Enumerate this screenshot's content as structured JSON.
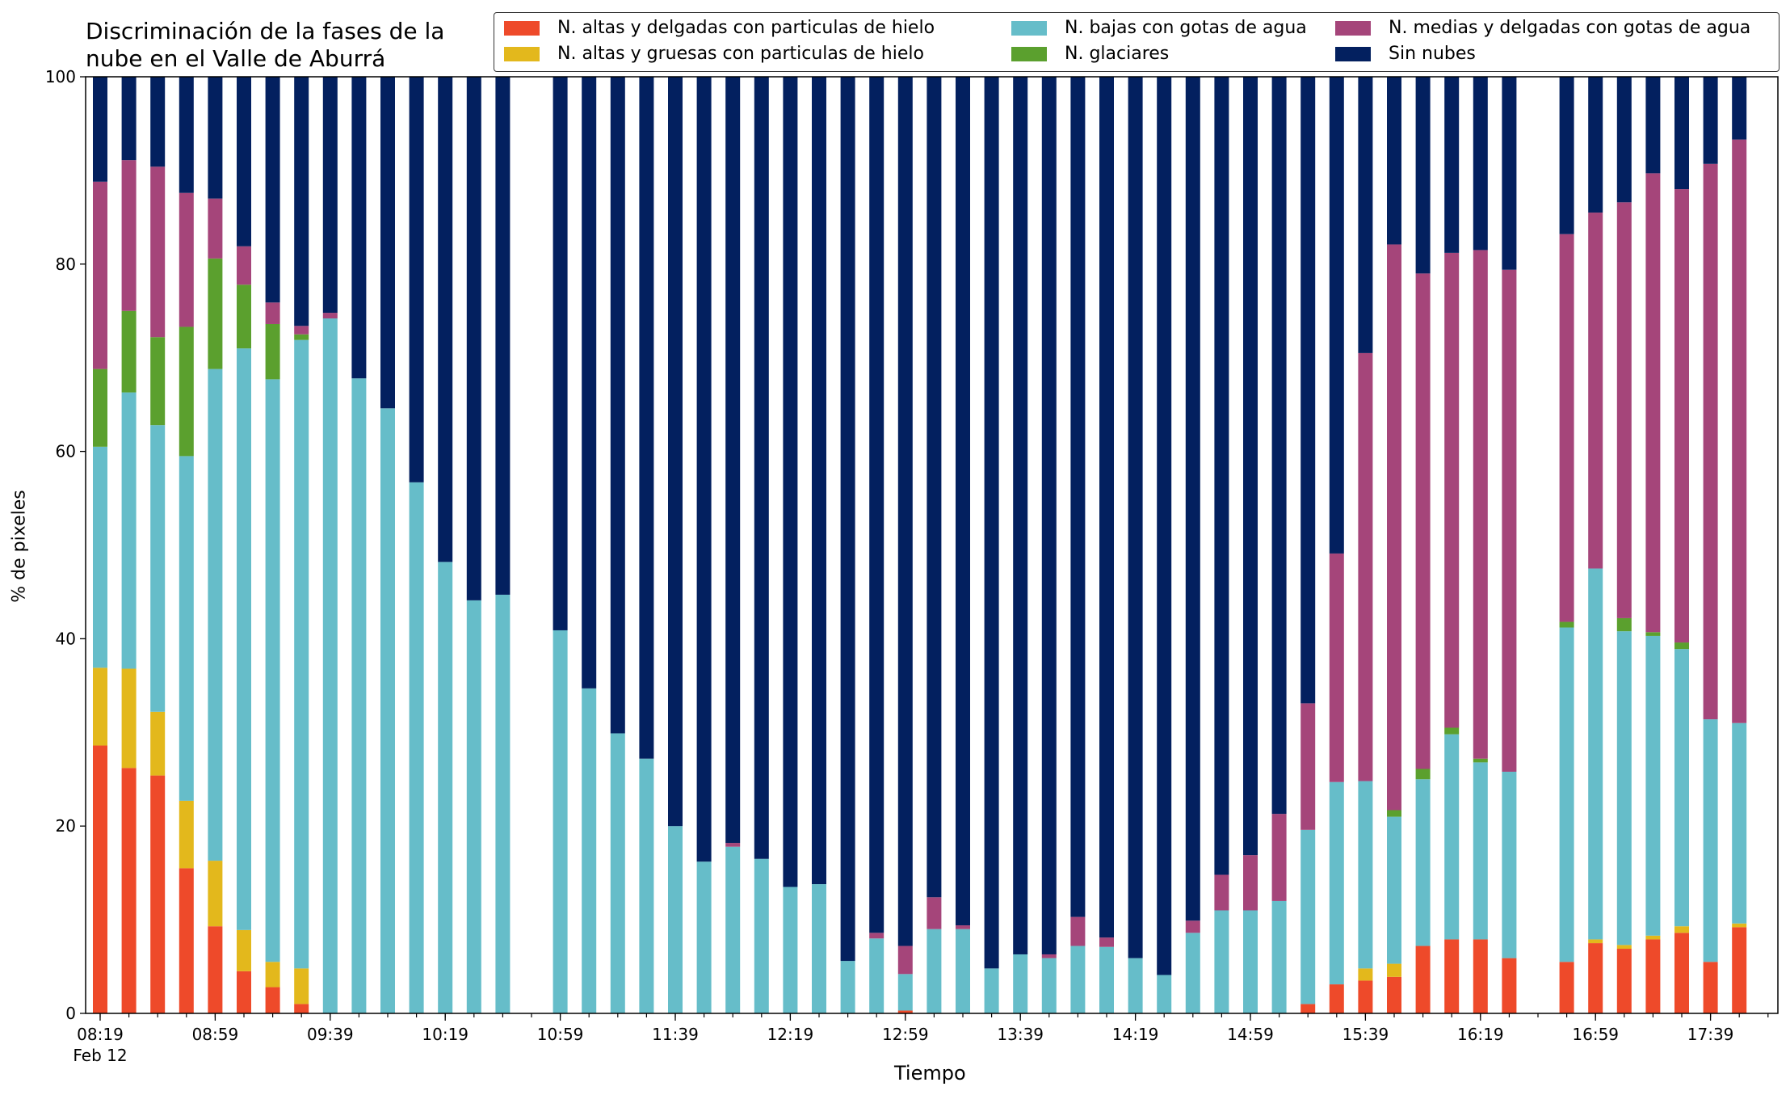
{
  "chart_data": {
    "type": "bar",
    "stacked": true,
    "title": "Discriminación de la fases de la nube en el Valle de Aburrá",
    "xlabel": "Tiempo",
    "ylabel": "% de pixeles",
    "ylim": [
      0,
      100
    ],
    "yticks": [
      "0",
      "20",
      "40",
      "60",
      "80",
      "100"
    ],
    "xticks": [
      "08:19",
      "08:59",
      "09:39",
      "10:19",
      "10:59",
      "11:39",
      "12:19",
      "12:59",
      "13:39",
      "14:19",
      "14:59",
      "15:39",
      "16:19",
      "16:59",
      "17:39"
    ],
    "xtick_sublabel": "Feb 12",
    "legend_position": "top",
    "x": [
      "08:19",
      "08:29",
      "08:39",
      "08:49",
      "08:59",
      "09:09",
      "09:19",
      "09:29",
      "09:39",
      "09:49",
      "09:59",
      "10:09",
      "10:19",
      "10:29",
      "10:39",
      "10:49",
      "10:59",
      "11:09",
      "11:19",
      "11:29",
      "11:39",
      "11:49",
      "11:59",
      "12:09",
      "12:19",
      "12:29",
      "12:39",
      "12:49",
      "12:59",
      "13:09",
      "13:19",
      "13:29",
      "13:39",
      "13:49",
      "13:59",
      "14:09",
      "14:19",
      "14:29",
      "14:39",
      "14:49",
      "14:59",
      "15:09",
      "15:19",
      "15:29",
      "15:39",
      "15:49",
      "15:59",
      "16:09",
      "16:19",
      "16:29",
      "16:39",
      "16:49",
      "16:59",
      "17:09",
      "17:19",
      "17:29",
      "17:39",
      "17:49"
    ],
    "series": [
      {
        "name": "N. altas y delgadas con particulas de hielo",
        "color": "#ee4a2a",
        "values": [
          28.6,
          26.2,
          25.4,
          15.5,
          9.3,
          4.5,
          2.8,
          1.0,
          0,
          0,
          0,
          0,
          0,
          0,
          0,
          null,
          0,
          0,
          0,
          0,
          0,
          0,
          0,
          0,
          0,
          0,
          0,
          0,
          0.3,
          0,
          0,
          0,
          0,
          0,
          0,
          0,
          0,
          0,
          0,
          0,
          0,
          0,
          1.0,
          3.1,
          3.5,
          3.9,
          7.2,
          7.9,
          7.9,
          5.9,
          null,
          5.5,
          7.5,
          6.9,
          7.9,
          8.6,
          5.5,
          9.2
        ]
      },
      {
        "name": "N. altas y gruesas con particulas de hielo",
        "color": "#e3b81c",
        "values": [
          8.3,
          10.6,
          6.8,
          7.2,
          7.0,
          4.4,
          2.7,
          3.8,
          0,
          0,
          0,
          0,
          0,
          0,
          0,
          null,
          0,
          0,
          0,
          0,
          0,
          0,
          0,
          0,
          0,
          0,
          0,
          0,
          0,
          0,
          0,
          0,
          0,
          0,
          0,
          0,
          0,
          0,
          0,
          0,
          0,
          0,
          0,
          0,
          1.3,
          1.4,
          0,
          0,
          0,
          0,
          null,
          0,
          0.4,
          0.4,
          0.4,
          0.7,
          0,
          0.4
        ]
      },
      {
        "name": "N. bajas con gotas de agua",
        "color": "#66bdc9",
        "values": [
          23.6,
          29.5,
          30.6,
          36.8,
          52.5,
          62.1,
          62.2,
          67.1,
          74.2,
          67.8,
          64.6,
          56.7,
          48.2,
          44.1,
          44.7,
          null,
          40.9,
          34.7,
          29.9,
          27.2,
          20.0,
          16.2,
          17.8,
          16.5,
          13.5,
          13.8,
          5.6,
          8.0,
          3.9,
          9.0,
          9.0,
          4.8,
          6.3,
          5.9,
          7.2,
          7.1,
          5.9,
          4.1,
          8.6,
          11.0,
          11.0,
          12.0,
          18.6,
          21.6,
          20.0,
          15.7,
          17.8,
          21.9,
          18.9,
          19.9,
          null,
          35.7,
          39.6,
          33.5,
          32.0,
          29.6,
          25.9,
          21.4
        ]
      },
      {
        "name": "N. glaciares",
        "color": "#5ba02e",
        "values": [
          8.3,
          8.7,
          9.4,
          13.8,
          11.8,
          6.8,
          5.9,
          0.6,
          0,
          0,
          0,
          0,
          0,
          0,
          0,
          null,
          0,
          0,
          0,
          0,
          0,
          0,
          0,
          0,
          0,
          0,
          0,
          0,
          0,
          0,
          0,
          0,
          0,
          0,
          0,
          0,
          0,
          0,
          0,
          0,
          0,
          0,
          0,
          0,
          0,
          0.7,
          1.1,
          0.7,
          0.4,
          0,
          null,
          0.6,
          0,
          1.4,
          0.4,
          0.7,
          0,
          0
        ]
      },
      {
        "name": "N. medias y delgadas con gotas de agua",
        "color": "#a5457a",
        "values": [
          20.0,
          16.1,
          18.2,
          14.3,
          6.4,
          4.1,
          2.3,
          0.9,
          0.6,
          0,
          0,
          0,
          0,
          0,
          0,
          null,
          0,
          0,
          0,
          0,
          0,
          0,
          0.4,
          0,
          0,
          0,
          0,
          0.6,
          3.0,
          3.4,
          0.4,
          0,
          0,
          0.4,
          3.1,
          1.0,
          0,
          0,
          1.3,
          3.8,
          5.9,
          9.3,
          13.5,
          24.4,
          45.7,
          60.4,
          52.9,
          50.7,
          54.3,
          53.6,
          null,
          41.4,
          38.0,
          44.4,
          49.0,
          48.4,
          59.3,
          62.3
        ]
      },
      {
        "name": "Sin nubes",
        "color": "#03205f",
        "values": [
          11.2,
          8.9,
          9.6,
          12.4,
          13.0,
          18.1,
          24.1,
          26.6,
          25.2,
          32.2,
          35.4,
          43.3,
          51.8,
          55.9,
          55.3,
          null,
          59.1,
          65.3,
          70.1,
          72.8,
          80.0,
          83.8,
          81.8,
          83.5,
          86.5,
          86.2,
          94.4,
          91.4,
          92.8,
          87.6,
          90.6,
          95.2,
          93.7,
          93.7,
          89.7,
          91.9,
          94.1,
          95.9,
          90.1,
          85.2,
          83.1,
          78.7,
          66.9,
          50.9,
          29.5,
          17.9,
          21.0,
          18.8,
          18.5,
          20.6,
          null,
          16.8,
          14.5,
          13.4,
          10.3,
          12.0,
          9.3,
          6.7
        ]
      }
    ]
  }
}
